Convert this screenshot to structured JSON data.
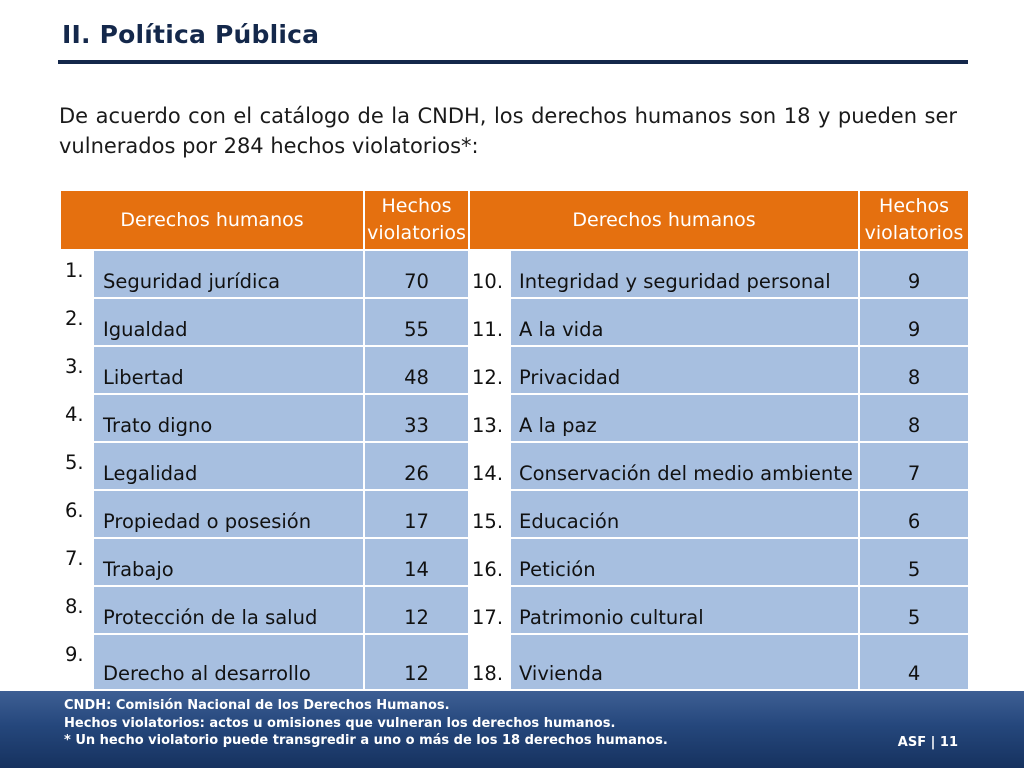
{
  "title": "II. Política Pública",
  "intro": "De acuerdo con el catálogo de la CNDH, los derechos humanos son 18 y pueden ser vulnerados por 284 hechos violatorios*:",
  "table": {
    "headers": {
      "left_rights": "Derechos humanos",
      "left_facts": "Hechos violatorios",
      "right_rights": "Derechos humanos",
      "right_facts": "Hechos violatorios"
    },
    "rows": [
      {
        "n1": "1.",
        "r1": "Seguridad jurídica",
        "v1": "70",
        "n2": "10.",
        "r2": "Integridad y seguridad personal",
        "v2": "9"
      },
      {
        "n1": "2.",
        "r1": "Igualdad",
        "v1": "55",
        "n2": "11.",
        "r2": "A la vida",
        "v2": "9"
      },
      {
        "n1": "3.",
        "r1": "Libertad",
        "v1": "48",
        "n2": "12.",
        "r2": "Privacidad",
        "v2": "8"
      },
      {
        "n1": "4.",
        "r1": "Trato digno",
        "v1": "33",
        "n2": "13.",
        "r2": "A la paz",
        "v2": "8"
      },
      {
        "n1": "5.",
        "r1": "Legalidad",
        "v1": "26",
        "n2": "14.",
        "r2": "Conservación del medio ambiente",
        "v2": "7"
      },
      {
        "n1": "6.",
        "r1": "Propiedad o posesión",
        "v1": "17",
        "n2": "15.",
        "r2": "Educación",
        "v2": "6"
      },
      {
        "n1": "7.",
        "r1": "Trabajo",
        "v1": "14",
        "n2": "16.",
        "r2": "Petición",
        "v2": "5"
      },
      {
        "n1": "8.",
        "r1": "Protección de la salud",
        "v1": "12",
        "n2": "17.",
        "r2": "Patrimonio cultural",
        "v2": "5"
      },
      {
        "n1": "9.",
        "r1": "Derecho al desarrollo",
        "v1": "12",
        "n2": "18.",
        "r2": "Vivienda",
        "v2": "4"
      }
    ]
  },
  "footer": {
    "note1": "CNDH: Comisión Nacional de los Derechos Humanos.",
    "note2": "Hechos violatorios: actos u omisiones que vulneran los derechos humanos.",
    "note3": "* Un hecho violatorio puede transgredir a uno o más de los 18 derechos humanos.",
    "page": "ASF | 11"
  },
  "colors": {
    "header_orange": "#e5700f",
    "cell_blue": "#a7bfe0",
    "title_navy": "#14284b",
    "footer_blue": "#25477c"
  }
}
